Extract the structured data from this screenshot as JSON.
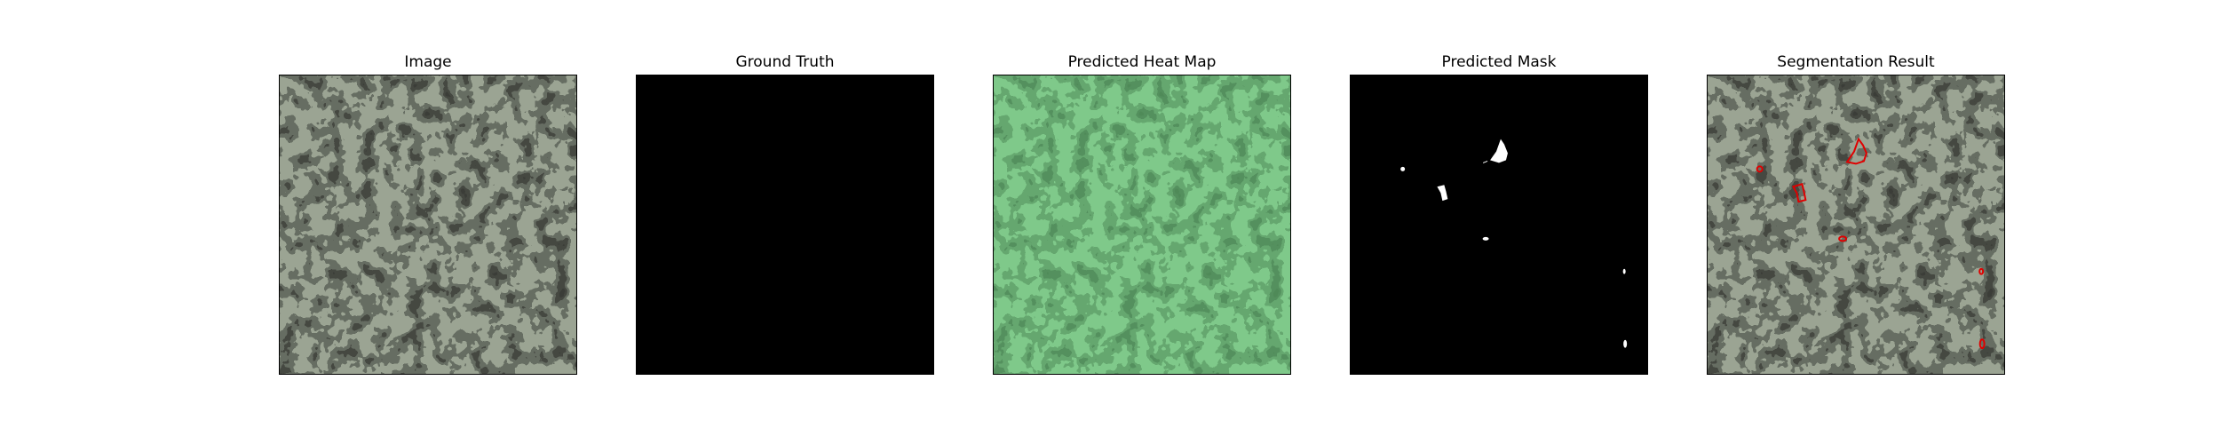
{
  "panels": [
    {
      "title": "Image"
    },
    {
      "title": "Ground Truth"
    },
    {
      "title": "Predicted Heat Map"
    },
    {
      "title": "Predicted Mask"
    },
    {
      "title": "Segmentation Result"
    }
  ],
  "colors": {
    "texture_light": "#9ba493",
    "texture_dark": "#3a3d39",
    "heat_light": "#7fc98a",
    "heat_dark": "#4f8a59",
    "mask_background": "#000000",
    "mask_foreground": "#ffffff",
    "contour": "#e00000"
  }
}
